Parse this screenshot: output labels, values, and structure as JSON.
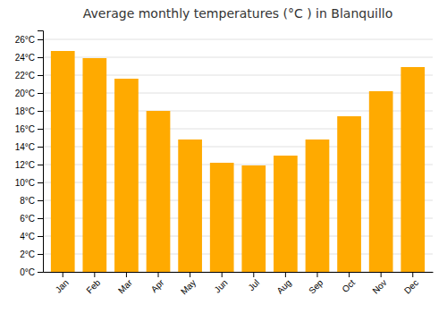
{
  "chart_data": {
    "type": "bar",
    "title": "Average monthly temperatures (°C ) in Blanquillo",
    "categories": [
      "Jan",
      "Feb",
      "Mar",
      "Apr",
      "May",
      "Jun",
      "Jul",
      "Aug",
      "Sep",
      "Oct",
      "Nov",
      "Dec"
    ],
    "values": [
      24.7,
      23.9,
      21.6,
      18.0,
      14.8,
      12.2,
      11.9,
      13.0,
      14.8,
      17.4,
      20.2,
      22.9
    ],
    "color": "#FFAA00",
    "ylim": [
      0,
      27
    ],
    "yticks": [
      {
        "value": 0,
        "label": "0°C"
      },
      {
        "value": 2,
        "label": "2°C"
      },
      {
        "value": 4,
        "label": "4°C"
      },
      {
        "value": 6,
        "label": "6°C"
      },
      {
        "value": 8,
        "label": "8°C"
      },
      {
        "value": 10,
        "label": "10°C"
      },
      {
        "value": 12,
        "label": "12°C"
      },
      {
        "value": 14,
        "label": "14°C"
      },
      {
        "value": 16,
        "label": "16°C"
      },
      {
        "value": 18,
        "label": "18°C"
      },
      {
        "value": 20,
        "label": "20°C"
      },
      {
        "value": 22,
        "label": "22°C"
      },
      {
        "value": 24,
        "label": "24°C"
      },
      {
        "value": 26,
        "label": "26°C"
      }
    ],
    "grid": true
  }
}
